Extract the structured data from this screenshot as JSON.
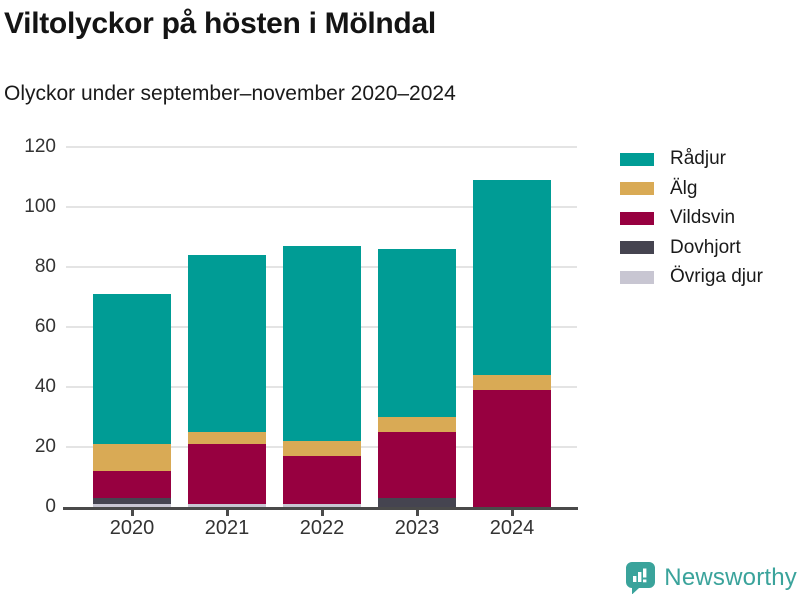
{
  "header": {
    "title": "Viltolyckor på hösten i Mölndal",
    "subtitle": "Olyckor under september–november 2020–2024"
  },
  "chart_data": {
    "type": "bar",
    "stacked": true,
    "title": "Viltolyckor på hösten i Mölndal",
    "subtitle": "Olyckor under september–november 2020–2024",
    "categories": [
      "2020",
      "2021",
      "2022",
      "2023",
      "2024"
    ],
    "series": [
      {
        "name": "Rådjur",
        "color": "#009c95",
        "values": [
          50,
          59,
          65,
          56,
          65
        ]
      },
      {
        "name": "Älg",
        "color": "#d9aa55",
        "values": [
          9,
          4,
          5,
          5,
          5
        ]
      },
      {
        "name": "Vildsvin",
        "color": "#970040",
        "values": [
          9,
          20,
          16,
          22,
          39
        ]
      },
      {
        "name": "Dovhjort",
        "color": "#454450",
        "values": [
          2,
          0,
          0,
          3,
          0
        ]
      },
      {
        "name": "Övriga djur",
        "color": "#c8c6d2",
        "values": [
          1,
          1,
          1,
          0,
          0
        ]
      }
    ],
    "stack_order_bottom_to_top": [
      "Övriga djur",
      "Dovhjort",
      "Vildsvin",
      "Älg",
      "Rådjur"
    ],
    "y_ticks": [
      0,
      20,
      40,
      60,
      80,
      100,
      120
    ],
    "ylim": [
      0,
      120
    ],
    "xlabel": "",
    "ylabel": "",
    "grid": "horizontal",
    "legend_position": "right"
  },
  "colors": {
    "gridline": "#e4e4e4",
    "axis": "#4a4a4a",
    "axis_text": "#333333",
    "title_text": "#141414",
    "brand": "#3aa39b"
  },
  "footer": {
    "brand": "Newsworthy",
    "brand_icon": "bar-chart-speech-bubble-icon"
  }
}
